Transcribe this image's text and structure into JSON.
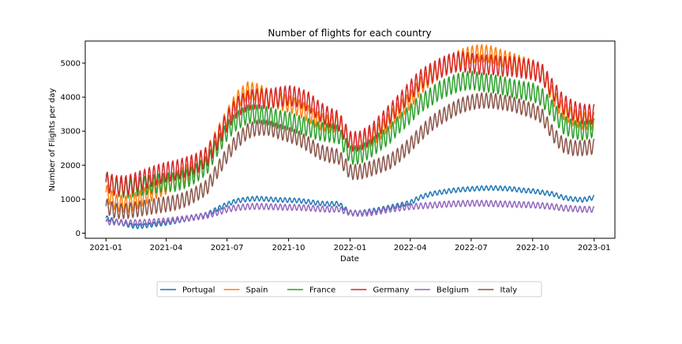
{
  "chart_data": {
    "type": "line",
    "title": "Number of flights for each country",
    "xlabel": "Date",
    "ylabel": "Number of Flights per day",
    "x_ticks": [
      "2021-01",
      "2021-04",
      "2021-07",
      "2021-10",
      "2022-01",
      "2022-04",
      "2022-07",
      "2022-10",
      "2023-01"
    ],
    "y_ticks": [
      "0",
      "1000",
      "2000",
      "3000",
      "4000",
      "5000"
    ],
    "xlim": [
      "2020-12-01",
      "2023-02-01"
    ],
    "ylim": [
      -150,
      5650
    ],
    "grid": false,
    "legend_position": "bottom-center",
    "x": [
      "2021-01-01",
      "2021-01-15",
      "2021-02-01",
      "2021-02-15",
      "2021-03-01",
      "2021-03-15",
      "2021-04-01",
      "2021-04-15",
      "2021-05-01",
      "2021-05-15",
      "2021-06-01",
      "2021-06-15",
      "2021-07-01",
      "2021-07-15",
      "2021-08-01",
      "2021-08-15",
      "2021-09-01",
      "2021-09-15",
      "2021-10-01",
      "2021-10-15",
      "2021-11-01",
      "2021-11-15",
      "2021-12-01",
      "2021-12-15",
      "2022-01-01",
      "2022-01-15",
      "2022-02-01",
      "2022-02-15",
      "2022-03-01",
      "2022-03-15",
      "2022-04-01",
      "2022-04-15",
      "2022-05-01",
      "2022-05-15",
      "2022-06-01",
      "2022-06-15",
      "2022-07-01",
      "2022-07-15",
      "2022-08-01",
      "2022-08-15",
      "2022-09-01",
      "2022-09-15",
      "2022-10-01",
      "2022-10-15",
      "2022-11-01",
      "2022-11-15",
      "2022-12-01",
      "2022-12-15",
      "2023-01-01"
    ],
    "series": [
      {
        "name": "Portugal",
        "color": "#1f77b4",
        "weekly_amplitude": 70,
        "values": [
          450,
          350,
          250,
          200,
          220,
          260,
          300,
          350,
          420,
          480,
          550,
          700,
          850,
          950,
          1000,
          1020,
          1000,
          980,
          970,
          960,
          920,
          880,
          860,
          870,
          600,
          600,
          650,
          700,
          760,
          820,
          900,
          1050,
          1150,
          1200,
          1250,
          1280,
          1300,
          1320,
          1330,
          1320,
          1300,
          1260,
          1240,
          1200,
          1150,
          1050,
          1000,
          980,
          1050
        ]
      },
      {
        "name": "Spain",
        "color": "#ff7f0e",
        "weekly_amplitude": 260,
        "values": [
          1200,
          900,
          850,
          950,
          1100,
          1250,
          1400,
          1550,
          1750,
          1950,
          2300,
          2800,
          3400,
          3900,
          4200,
          4150,
          4000,
          3900,
          3800,
          3700,
          3500,
          3300,
          3200,
          3250,
          2700,
          2700,
          2800,
          3000,
          3300,
          3600,
          3900,
          4300,
          4600,
          4800,
          5000,
          5150,
          5250,
          5300,
          5250,
          5150,
          5050,
          4950,
          4850,
          4700,
          4000,
          3600,
          3400,
          3300,
          3300
        ]
      },
      {
        "name": "France",
        "color": "#2ca02c",
        "weekly_amplitude": 280,
        "values": [
          1550,
          1350,
          1300,
          1350,
          1400,
          1450,
          1500,
          1500,
          1600,
          1750,
          2000,
          2500,
          3000,
          3300,
          3500,
          3500,
          3450,
          3350,
          3300,
          3200,
          3100,
          3000,
          2950,
          2900,
          2300,
          2300,
          2500,
          2700,
          2900,
          3200,
          3500,
          3800,
          4000,
          4200,
          4350,
          4450,
          4500,
          4450,
          4400,
          4350,
          4250,
          4200,
          4150,
          4000,
          3600,
          3200,
          3050,
          3000,
          3100
        ]
      },
      {
        "name": "Germany",
        "color": "#d62728",
        "weekly_amplitude": 300,
        "values": [
          1500,
          1400,
          1400,
          1500,
          1600,
          1700,
          1800,
          1850,
          1950,
          2050,
          2250,
          2700,
          3300,
          3700,
          3900,
          3950,
          3950,
          4000,
          4050,
          4000,
          3850,
          3600,
          3400,
          3300,
          2700,
          2700,
          2900,
          3200,
          3500,
          3800,
          4200,
          4500,
          4700,
          4850,
          5000,
          5050,
          5000,
          4950,
          4950,
          4900,
          4900,
          4850,
          4800,
          4700,
          4200,
          3800,
          3600,
          3500,
          3500
        ]
      },
      {
        "name": "Belgium",
        "color": "#9467bd",
        "weekly_amplitude": 90,
        "values": [
          330,
          330,
          300,
          310,
          320,
          340,
          360,
          390,
          430,
          470,
          520,
          600,
          700,
          750,
          780,
          790,
          780,
          770,
          760,
          760,
          740,
          720,
          700,
          710,
          600,
          580,
          600,
          650,
          700,
          740,
          780,
          800,
          820,
          840,
          860,
          870,
          880,
          880,
          870,
          860,
          850,
          840,
          830,
          810,
          780,
          740,
          720,
          700,
          700
        ]
      },
      {
        "name": "Italy",
        "color": "#8c564b",
        "weekly_amplitude": 230,
        "values": [
          800,
          650,
          650,
          700,
          750,
          800,
          850,
          900,
          1000,
          1150,
          1350,
          1800,
          2300,
          2700,
          3000,
          3100,
          3100,
          3000,
          2900,
          2800,
          2600,
          2400,
          2300,
          2250,
          1800,
          1800,
          1900,
          2000,
          2100,
          2300,
          2600,
          2900,
          3200,
          3400,
          3600,
          3750,
          3850,
          3900,
          3900,
          3850,
          3800,
          3700,
          3600,
          3450,
          2900,
          2600,
          2500,
          2500,
          2550
        ]
      }
    ]
  }
}
